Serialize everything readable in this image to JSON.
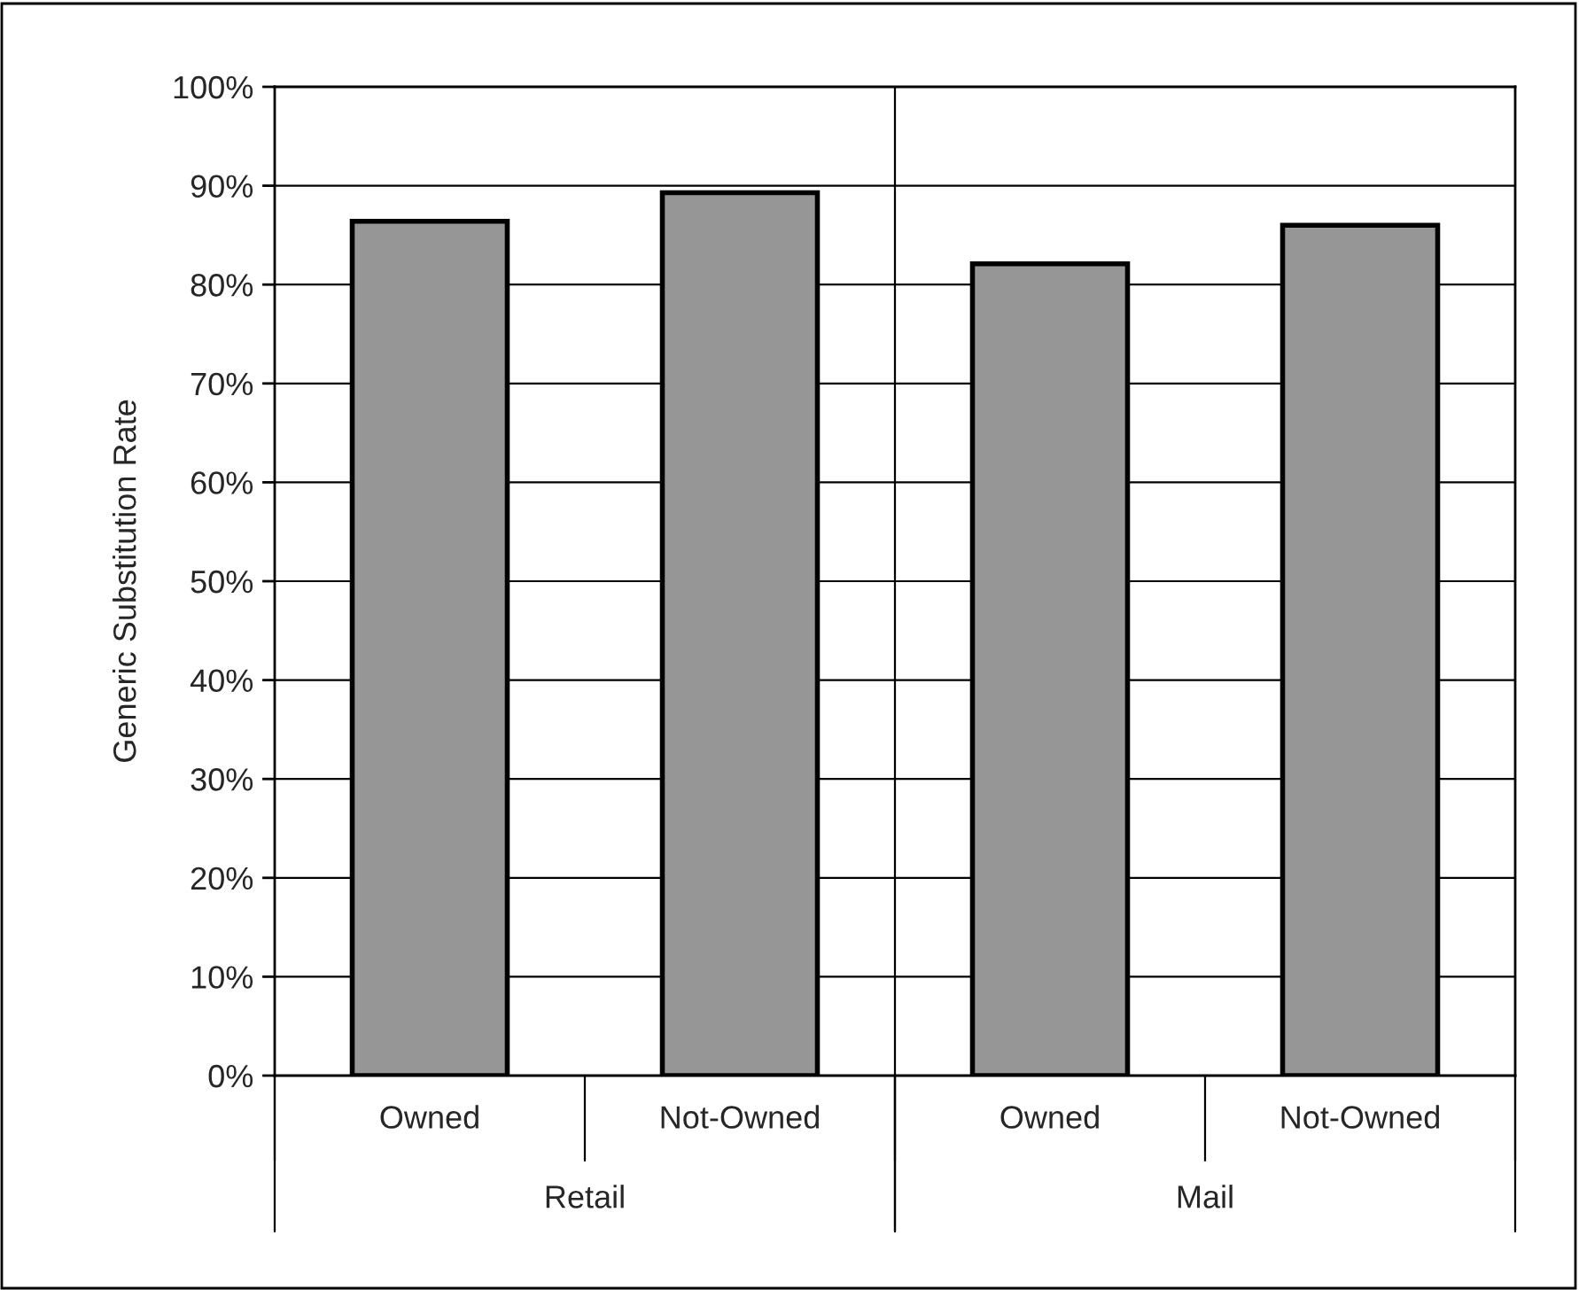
{
  "chart_data": {
    "type": "bar",
    "ylabel": "Generic Substitution Rate",
    "categories": [
      "Owned",
      "Not-Owned",
      "Owned",
      "Not-Owned"
    ],
    "values": [
      0.864,
      0.893,
      0.821,
      0.86
    ],
    "color": "#969696",
    "ylim": [
      0,
      1
    ],
    "yticks": [
      {
        "value": 0,
        "label": "0%"
      },
      {
        "value": 0.1,
        "label": "10%"
      },
      {
        "value": 0.2,
        "label": "20%"
      },
      {
        "value": 0.3,
        "label": "30%"
      },
      {
        "value": 0.4,
        "label": "40%"
      },
      {
        "value": 0.5,
        "label": "50%"
      },
      {
        "value": 0.6,
        "label": "60%"
      },
      {
        "value": 0.7,
        "label": "70%"
      },
      {
        "value": 0.8,
        "label": "80%"
      },
      {
        "value": 0.9,
        "label": "90%"
      },
      {
        "value": 1,
        "label": "100%"
      }
    ],
    "annotations": [
      "Retail",
      "Mail"
    ],
    "grid": "y"
  }
}
